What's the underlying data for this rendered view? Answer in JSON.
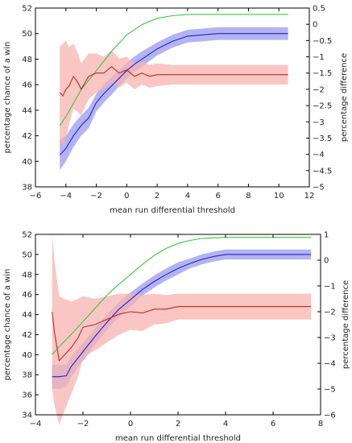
{
  "chart_data": [
    {
      "type": "line",
      "xlabel": "mean run differential threshold",
      "ylabel": "percentage chance of a win",
      "y2label": "percentage difference",
      "xlim": [
        -6,
        12
      ],
      "ylim": [
        38,
        52
      ],
      "y2lim": [
        -5,
        0.5
      ],
      "xticks": [
        "−6",
        "−4",
        "−2",
        "0",
        "2",
        "4",
        "6",
        "8",
        "10",
        "12"
      ],
      "yticks": [
        "38",
        "40",
        "42",
        "44",
        "46",
        "48",
        "50",
        "52"
      ],
      "y2ticks": [
        "−5",
        "−4.5",
        "−4",
        "−3.5",
        "−3",
        "−2.5",
        "−2",
        "−1.5",
        "−1",
        "−0.5",
        "0",
        "0.5"
      ],
      "grid": false,
      "series": [
        {
          "color": "#39c83c",
          "axis": "left",
          "x": [
            -4.4,
            -4,
            -3,
            -2,
            -1,
            0,
            1,
            2,
            3,
            4,
            5,
            6,
            7,
            8,
            9,
            10,
            10.6
          ],
          "y": [
            42.8,
            43.5,
            45.6,
            47.1,
            48.6,
            49.9,
            50.7,
            51.2,
            51.4,
            51.5,
            51.5,
            51.5,
            51.5,
            51.5,
            51.5,
            51.5,
            51.5
          ]
        },
        {
          "color": "#2222cc",
          "band_color": "#9a9af0",
          "axis": "left",
          "x": [
            -4.4,
            -4,
            -3.5,
            -3,
            -2.5,
            -2,
            -1.5,
            -1,
            -0.5,
            0,
            0.5,
            1,
            2,
            3,
            4,
            5,
            6,
            7,
            8,
            9,
            10,
            10.6
          ],
          "y": [
            40.5,
            41,
            42,
            42.8,
            43.4,
            44.6,
            45.3,
            45.9,
            46.5,
            47.1,
            47.6,
            48.0,
            48.8,
            49.4,
            49.8,
            49.9,
            50.0,
            50.0,
            50.0,
            50.0,
            50.0,
            50.0
          ],
          "band": [
            1.2,
            1.0,
            0.9,
            0.8,
            0.8,
            0.7,
            0.7,
            0.7,
            0.6,
            0.6,
            0.6,
            0.6,
            0.5,
            0.5,
            0.5,
            0.5,
            0.5,
            0.5,
            0.5,
            0.5,
            0.5,
            0.5
          ]
        },
        {
          "color": "#c42a1a",
          "band_color": "#f7b3b0",
          "axis": "right",
          "x": [
            -4.4,
            -4.2,
            -4,
            -3.8,
            -3.5,
            -3.2,
            -3,
            -2.5,
            -2,
            -1.5,
            -1,
            -0.5,
            0,
            0.5,
            1,
            1.5,
            2,
            3,
            4,
            5,
            6,
            7,
            8,
            9,
            10,
            10.6
          ],
          "y": [
            -2.1,
            -2.2,
            -2.0,
            -1.9,
            -1.6,
            -1.8,
            -2.0,
            -1.6,
            -1.5,
            -1.5,
            -1.3,
            -1.5,
            -1.4,
            -1.6,
            -1.5,
            -1.6,
            -1.55,
            -1.55,
            -1.55,
            -1.55,
            -1.55,
            -1.55,
            -1.55,
            -1.55,
            -1.55,
            -1.55
          ],
          "band": [
            1.4,
            1.6,
            1.5,
            1.2,
            1.0,
            0.9,
            0.8,
            0.7,
            0.6,
            0.5,
            0.5,
            0.45,
            0.4,
            0.4,
            0.35,
            0.35,
            0.35,
            0.3,
            0.3,
            0.3,
            0.3,
            0.3,
            0.3,
            0.3,
            0.3,
            0.3
          ]
        }
      ]
    },
    {
      "type": "line",
      "xlabel": "mean run differential threshold",
      "ylabel": "percentage chance of a win",
      "y2label": "percentage difference",
      "xlim": [
        -4,
        8
      ],
      "ylim": [
        34,
        52
      ],
      "y2lim": [
        -6,
        1
      ],
      "xticks": [
        "−4",
        "−2",
        "0",
        "2",
        "4",
        "6",
        "8"
      ],
      "yticks": [
        "34",
        "36",
        "38",
        "40",
        "42",
        "44",
        "46",
        "48",
        "50",
        "52"
      ],
      "y2ticks": [
        "−6",
        "−5",
        "−4",
        "−3",
        "−2",
        "−1",
        "0",
        "1"
      ],
      "grid": false,
      "series": [
        {
          "color": "#39c83c",
          "axis": "left",
          "x": [
            -3.3,
            -3,
            -2.5,
            -2,
            -1.5,
            -1,
            -0.5,
            0,
            0.5,
            1,
            1.5,
            2,
            2.5,
            3,
            4,
            5,
            6,
            7,
            7.6
          ],
          "y": [
            40.0,
            40.8,
            42.0,
            43.3,
            44.6,
            45.9,
            47.0,
            48.0,
            49.0,
            49.9,
            50.6,
            51.1,
            51.4,
            51.6,
            51.7,
            51.7,
            51.7,
            51.7,
            51.7
          ]
        },
        {
          "color": "#2222cc",
          "band_color": "#9a9af0",
          "axis": "left",
          "x": [
            -3.3,
            -3,
            -2.7,
            -2.5,
            -2,
            -1.5,
            -1,
            -0.5,
            0,
            0.5,
            1,
            1.5,
            2,
            2.5,
            3,
            3.5,
            4,
            5,
            6,
            7,
            7.6
          ],
          "y": [
            37.8,
            37.8,
            37.9,
            38.8,
            40.3,
            41.8,
            43.2,
            44.5,
            45.5,
            46.5,
            47.3,
            48.0,
            48.6,
            49.1,
            49.5,
            49.8,
            50.0,
            50.0,
            50.0,
            50.0,
            50.0
          ],
          "band": [
            1.2,
            1.2,
            1.1,
            1.0,
            0.9,
            0.8,
            0.8,
            0.7,
            0.7,
            0.6,
            0.6,
            0.6,
            0.6,
            0.5,
            0.5,
            0.5,
            0.5,
            0.5,
            0.5,
            0.5,
            0.5
          ]
        },
        {
          "color": "#c42a1a",
          "band_color": "#f7b3b0",
          "axis": "right",
          "x": [
            -3.3,
            -3.2,
            -3,
            -2.8,
            -2.5,
            -2.2,
            -2,
            -1.5,
            -1,
            -0.5,
            0,
            0.5,
            1,
            1.5,
            2,
            3,
            4,
            5,
            6,
            7,
            7.6
          ],
          "y": [
            -2.0,
            -2.8,
            -3.9,
            -3.7,
            -3.4,
            -3.0,
            -2.6,
            -2.5,
            -2.3,
            -2.1,
            -2.0,
            -2.05,
            -1.9,
            -1.9,
            -1.8,
            -1.8,
            -1.8,
            -1.8,
            -1.8,
            -1.8,
            -1.8
          ],
          "band": [
            3.0,
            2.8,
            2.5,
            2.2,
            1.8,
            1.5,
            1.2,
            1.0,
            0.9,
            0.8,
            0.7,
            0.7,
            0.6,
            0.55,
            0.5,
            0.5,
            0.5,
            0.5,
            0.5,
            0.5,
            0.5
          ]
        }
      ]
    }
  ]
}
